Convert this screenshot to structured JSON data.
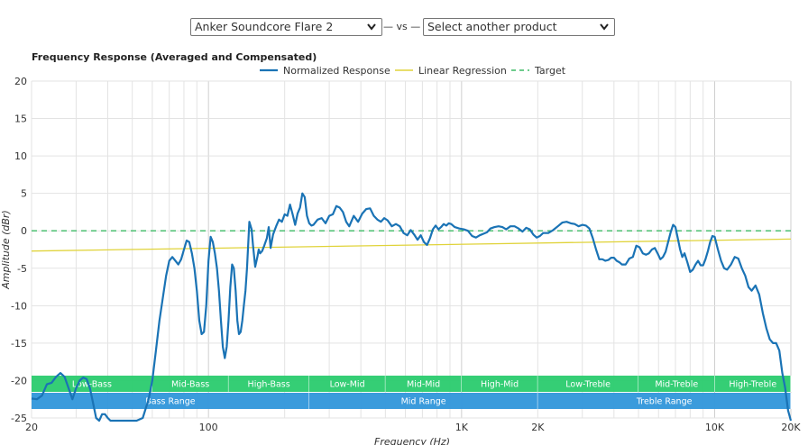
{
  "selectors": {
    "product_a": "Anker Soundcore Flare 2",
    "vs_text": "— vs —",
    "product_b": "Select another product"
  },
  "chart_data": {
    "type": "line",
    "title": "Frequency Response (Averaged and Compensated)",
    "xlabel": "Frequency (Hz)",
    "ylabel": "Amplitude (dBr)",
    "xscale": "log",
    "xlim": [
      20,
      20000
    ],
    "ylim": [
      -25,
      20
    ],
    "yticks": [
      20,
      15,
      10,
      5,
      0,
      -5,
      -10,
      -15,
      -20,
      -25
    ],
    "xticks": [
      {
        "value": 20,
        "label": "20"
      },
      {
        "value": 100,
        "label": "100"
      },
      {
        "value": 1000,
        "label": "1K"
      },
      {
        "value": 2000,
        "label": "2K"
      },
      {
        "value": 10000,
        "label": "10K"
      },
      {
        "value": 20000,
        "label": "20K"
      }
    ],
    "grid": true,
    "legend_position": "top-center",
    "colors": {
      "normalized": "#1a73b5",
      "regression": "#e0d33a",
      "target": "#3dbb66",
      "band_green": "#2ecc71",
      "band_blue": "#3498db"
    },
    "series": [
      {
        "name": "Normalized Response",
        "style": "solid",
        "points": [
          [
            20,
            -22.4
          ],
          [
            21,
            -22.5
          ],
          [
            22,
            -22
          ],
          [
            23,
            -20.5
          ],
          [
            24,
            -20.3
          ],
          [
            25,
            -19.5
          ],
          [
            26,
            -19
          ],
          [
            27,
            -19.5
          ],
          [
            28,
            -21
          ],
          [
            29,
            -22.5
          ],
          [
            30,
            -21
          ],
          [
            31,
            -20
          ],
          [
            32,
            -19.6
          ],
          [
            33,
            -19.8
          ],
          [
            34,
            -21
          ],
          [
            35,
            -23
          ],
          [
            36,
            -25
          ],
          [
            37,
            -25.5
          ],
          [
            38,
            -24.5
          ],
          [
            39,
            -24.5
          ],
          [
            40,
            -25
          ],
          [
            41,
            -25.5
          ],
          [
            42,
            -26
          ],
          [
            43,
            -26.5
          ],
          [
            50,
            -26.5
          ],
          [
            52,
            -26
          ],
          [
            55,
            -25
          ],
          [
            58,
            -22.5
          ],
          [
            60,
            -20
          ],
          [
            62,
            -16
          ],
          [
            64,
            -12
          ],
          [
            66,
            -9
          ],
          [
            68,
            -6
          ],
          [
            70,
            -4
          ],
          [
            72,
            -3.5
          ],
          [
            74,
            -4
          ],
          [
            76,
            -4.5
          ],
          [
            78,
            -3.8
          ],
          [
            80,
            -2.5
          ],
          [
            82,
            -1.3
          ],
          [
            84,
            -1.5
          ],
          [
            86,
            -3
          ],
          [
            88,
            -5
          ],
          [
            90,
            -8
          ],
          [
            92,
            -12
          ],
          [
            94,
            -13.8
          ],
          [
            96,
            -13.5
          ],
          [
            98,
            -10
          ],
          [
            100,
            -4
          ],
          [
            102,
            -0.8
          ],
          [
            104,
            -1.5
          ],
          [
            106,
            -3
          ],
          [
            108,
            -5
          ],
          [
            110,
            -8
          ],
          [
            112,
            -12
          ],
          [
            114,
            -15.5
          ],
          [
            116,
            -17
          ],
          [
            118,
            -15.5
          ],
          [
            120,
            -12
          ],
          [
            122,
            -7.5
          ],
          [
            124,
            -4.5
          ],
          [
            126,
            -5
          ],
          [
            128,
            -8
          ],
          [
            130,
            -12
          ],
          [
            132,
            -13.8
          ],
          [
            134,
            -13.5
          ],
          [
            136,
            -12
          ],
          [
            138,
            -10
          ],
          [
            140,
            -8
          ],
          [
            142,
            -5
          ],
          [
            145,
            1.2
          ],
          [
            148,
            0.2
          ],
          [
            150,
            -2
          ],
          [
            153,
            -4.8
          ],
          [
            156,
            -3.5
          ],
          [
            158,
            -2.5
          ],
          [
            160,
            -3
          ],
          [
            163,
            -2.7
          ],
          [
            166,
            -2
          ],
          [
            170,
            -1
          ],
          [
            173,
            0.5
          ],
          [
            176,
            -2.3
          ],
          [
            180,
            -0.5
          ],
          [
            185,
            0.6
          ],
          [
            190,
            1.5
          ],
          [
            195,
            1.2
          ],
          [
            200,
            2.2
          ],
          [
            205,
            2
          ],
          [
            210,
            3.5
          ],
          [
            215,
            2.2
          ],
          [
            220,
            0.8
          ],
          [
            225,
            2.3
          ],
          [
            230,
            3.1
          ],
          [
            235,
            5
          ],
          [
            240,
            4.5
          ],
          [
            245,
            2
          ],
          [
            250,
            1
          ],
          [
            255,
            0.7
          ],
          [
            260,
            0.8
          ],
          [
            270,
            1.5
          ],
          [
            280,
            1.7
          ],
          [
            290,
            1
          ],
          [
            300,
            2
          ],
          [
            310,
            2.2
          ],
          [
            320,
            3.3
          ],
          [
            330,
            3.1
          ],
          [
            340,
            2.5
          ],
          [
            350,
            1.2
          ],
          [
            360,
            0.6
          ],
          [
            375,
            2
          ],
          [
            390,
            1.2
          ],
          [
            405,
            2.3
          ],
          [
            420,
            2.9
          ],
          [
            435,
            3
          ],
          [
            450,
            2
          ],
          [
            465,
            1.5
          ],
          [
            480,
            1.2
          ],
          [
            495,
            1.7
          ],
          [
            510,
            1.4
          ],
          [
            530,
            0.6
          ],
          [
            550,
            0.9
          ],
          [
            570,
            0.6
          ],
          [
            590,
            -0.3
          ],
          [
            610,
            -0.6
          ],
          [
            630,
            0.1
          ],
          [
            650,
            -0.5
          ],
          [
            670,
            -1.2
          ],
          [
            690,
            -0.6
          ],
          [
            710,
            -1.5
          ],
          [
            730,
            -1.9
          ],
          [
            750,
            -1
          ],
          [
            770,
            0.2
          ],
          [
            790,
            0.7
          ],
          [
            810,
            0.2
          ],
          [
            830,
            0.5
          ],
          [
            850,
            0.9
          ],
          [
            870,
            0.7
          ],
          [
            890,
            1
          ],
          [
            910,
            0.9
          ],
          [
            940,
            0.5
          ],
          [
            980,
            0.3
          ],
          [
            1020,
            0.2
          ],
          [
            1060,
            0
          ],
          [
            1100,
            -0.7
          ],
          [
            1140,
            -0.9
          ],
          [
            1180,
            -0.6
          ],
          [
            1220,
            -0.4
          ],
          [
            1260,
            -0.2
          ],
          [
            1300,
            0.3
          ],
          [
            1350,
            0.5
          ],
          [
            1400,
            0.6
          ],
          [
            1450,
            0.5
          ],
          [
            1500,
            0.2
          ],
          [
            1560,
            0.6
          ],
          [
            1620,
            0.6
          ],
          [
            1680,
            0.3
          ],
          [
            1740,
            -0.1
          ],
          [
            1800,
            0.4
          ],
          [
            1860,
            0.2
          ],
          [
            1920,
            -0.5
          ],
          [
            1980,
            -0.9
          ],
          [
            2040,
            -0.7
          ],
          [
            2100,
            -0.3
          ],
          [
            2200,
            -0.3
          ],
          [
            2300,
            0.1
          ],
          [
            2400,
            0.6
          ],
          [
            2500,
            1.1
          ],
          [
            2600,
            1.2
          ],
          [
            2700,
            1
          ],
          [
            2800,
            0.9
          ],
          [
            2900,
            0.6
          ],
          [
            3000,
            0.8
          ],
          [
            3100,
            0.7
          ],
          [
            3200,
            0.3
          ],
          [
            3300,
            -1
          ],
          [
            3400,
            -2.5
          ],
          [
            3500,
            -3.8
          ],
          [
            3600,
            -3.8
          ],
          [
            3700,
            -4
          ],
          [
            3800,
            -3.9
          ],
          [
            3900,
            -3.6
          ],
          [
            4000,
            -3.6
          ],
          [
            4100,
            -4
          ],
          [
            4200,
            -4.2
          ],
          [
            4300,
            -4.5
          ],
          [
            4450,
            -4.5
          ],
          [
            4600,
            -3.7
          ],
          [
            4750,
            -3.5
          ],
          [
            4900,
            -2
          ],
          [
            5050,
            -2.2
          ],
          [
            5200,
            -3
          ],
          [
            5350,
            -3.2
          ],
          [
            5500,
            -3
          ],
          [
            5650,
            -2.5
          ],
          [
            5800,
            -2.3
          ],
          [
            5950,
            -3
          ],
          [
            6100,
            -3.8
          ],
          [
            6250,
            -3.5
          ],
          [
            6400,
            -2.8
          ],
          [
            6550,
            -1.5
          ],
          [
            6700,
            -0.2
          ],
          [
            6850,
            0.8
          ],
          [
            7000,
            0.5
          ],
          [
            7150,
            -1
          ],
          [
            7300,
            -2.5
          ],
          [
            7450,
            -3.5
          ],
          [
            7600,
            -3
          ],
          [
            7800,
            -4.2
          ],
          [
            8000,
            -5.5
          ],
          [
            8200,
            -5.2
          ],
          [
            8400,
            -4.5
          ],
          [
            8600,
            -4
          ],
          [
            8800,
            -4.6
          ],
          [
            9000,
            -4.6
          ],
          [
            9200,
            -3.8
          ],
          [
            9400,
            -2.7
          ],
          [
            9600,
            -1.5
          ],
          [
            9800,
            -0.7
          ],
          [
            10000,
            -0.8
          ],
          [
            10300,
            -2.5
          ],
          [
            10600,
            -4
          ],
          [
            10900,
            -5
          ],
          [
            11200,
            -5.2
          ],
          [
            11600,
            -4.5
          ],
          [
            12000,
            -3.5
          ],
          [
            12400,
            -3.7
          ],
          [
            12800,
            -5
          ],
          [
            13200,
            -6
          ],
          [
            13600,
            -7.5
          ],
          [
            14000,
            -8
          ],
          [
            14500,
            -7.3
          ],
          [
            15000,
            -8.5
          ],
          [
            15500,
            -11
          ],
          [
            16000,
            -13
          ],
          [
            16500,
            -14.5
          ],
          [
            17000,
            -15
          ],
          [
            17500,
            -15
          ],
          [
            18000,
            -16
          ],
          [
            18500,
            -19
          ],
          [
            19000,
            -21
          ],
          [
            19500,
            -24
          ],
          [
            20000,
            -25.5
          ]
        ]
      },
      {
        "name": "Linear Regression",
        "style": "solid",
        "points": [
          [
            20,
            -2.7
          ],
          [
            20000,
            -1.1
          ]
        ]
      },
      {
        "name": "Target",
        "style": "dashed",
        "points": [
          [
            20,
            0
          ],
          [
            20000,
            0
          ]
        ]
      }
    ],
    "bands": [
      {
        "row": 1,
        "label": "Low-Bass",
        "from": 20,
        "to": 60
      },
      {
        "row": 1,
        "label": "Mid-Bass",
        "from": 60,
        "to": 120
      },
      {
        "row": 1,
        "label": "High-Bass",
        "from": 120,
        "to": 250
      },
      {
        "row": 1,
        "label": "Low-Mid",
        "from": 250,
        "to": 500
      },
      {
        "row": 1,
        "label": "Mid-Mid",
        "from": 500,
        "to": 1000
      },
      {
        "row": 1,
        "label": "High-Mid",
        "from": 1000,
        "to": 2000
      },
      {
        "row": 1,
        "label": "Low-Treble",
        "from": 2000,
        "to": 5000
      },
      {
        "row": 1,
        "label": "Mid-Treble",
        "from": 5000,
        "to": 10000
      },
      {
        "row": 1,
        "label": "High-Treble",
        "from": 10000,
        "to": 20000
      },
      {
        "row": 2,
        "label": "Bass Range",
        "from": 20,
        "to": 250
      },
      {
        "row": 2,
        "label": "Mid Range",
        "from": 250,
        "to": 2000
      },
      {
        "row": 2,
        "label": "Treble Range",
        "from": 2000,
        "to": 20000
      }
    ]
  }
}
